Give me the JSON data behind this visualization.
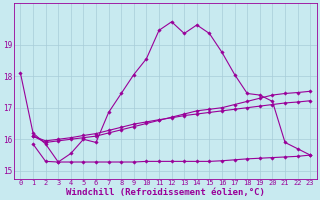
{
  "background_color": "#c8eaf0",
  "grid_color": "#a8ccd8",
  "line_color": "#990099",
  "xlabel": "Windchill (Refroidissement éolien,°C)",
  "xlabel_fontsize": 6.5,
  "xtick_fontsize": 5.0,
  "ytick_fontsize": 5.5,
  "xlim": [
    -0.5,
    23.5
  ],
  "ylim": [
    14.75,
    20.3
  ],
  "yticks": [
    15,
    16,
    17,
    18,
    19
  ],
  "xticks": [
    0,
    1,
    2,
    3,
    4,
    5,
    6,
    7,
    8,
    9,
    10,
    11,
    12,
    13,
    14,
    15,
    16,
    17,
    18,
    19,
    20,
    21,
    22,
    23
  ],
  "line1_x": [
    0,
    1,
    2,
    3,
    4,
    5,
    6,
    7,
    8,
    9,
    10,
    11,
    12,
    13,
    14,
    15,
    16,
    17,
    18,
    19,
    20,
    21,
    22,
    23
  ],
  "line1_y": [
    18.1,
    16.2,
    15.85,
    15.28,
    15.55,
    16.0,
    15.9,
    16.85,
    17.45,
    18.05,
    18.55,
    19.45,
    19.72,
    19.35,
    19.62,
    19.35,
    18.75,
    18.05,
    17.45,
    17.4,
    17.2,
    15.9,
    15.7,
    15.5
  ],
  "line2_x": [
    1,
    2,
    3,
    4,
    5,
    6,
    7,
    8,
    9,
    10,
    11,
    12,
    13,
    14,
    15,
    16,
    17,
    18,
    19,
    20,
    21,
    22,
    23
  ],
  "line2_y": [
    15.85,
    15.3,
    15.28,
    15.28,
    15.28,
    15.28,
    15.28,
    15.28,
    15.28,
    15.3,
    15.3,
    15.3,
    15.3,
    15.3,
    15.3,
    15.32,
    15.35,
    15.38,
    15.4,
    15.42,
    15.44,
    15.46,
    15.5
  ],
  "line3_x": [
    1,
    2,
    3,
    4,
    5,
    6,
    7,
    8,
    9,
    10,
    11,
    12,
    13,
    14,
    15,
    16,
    17,
    18,
    19,
    20,
    21,
    22,
    23
  ],
  "line3_y": [
    16.1,
    15.9,
    15.95,
    16.0,
    16.05,
    16.1,
    16.2,
    16.3,
    16.4,
    16.5,
    16.6,
    16.7,
    16.8,
    16.9,
    16.95,
    17.0,
    17.1,
    17.2,
    17.3,
    17.4,
    17.45,
    17.48,
    17.52
  ],
  "line4_x": [
    1,
    2,
    3,
    4,
    5,
    6,
    7,
    8,
    9,
    10,
    11,
    12,
    13,
    14,
    15,
    16,
    17,
    18,
    19,
    20,
    21,
    22,
    23
  ],
  "line4_y": [
    16.1,
    15.95,
    16.0,
    16.05,
    16.12,
    16.18,
    16.28,
    16.38,
    16.48,
    16.55,
    16.62,
    16.68,
    16.75,
    16.8,
    16.85,
    16.9,
    16.95,
    17.0,
    17.05,
    17.1,
    17.15,
    17.18,
    17.22
  ]
}
